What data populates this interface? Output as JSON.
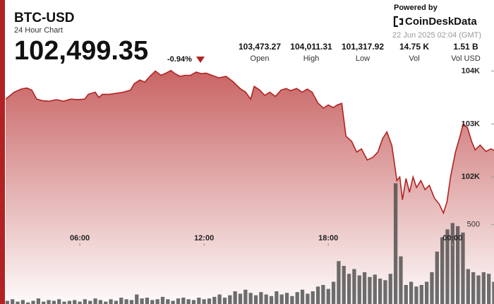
{
  "header": {
    "symbol": "BTC-USD",
    "subtitle": "24 Hour Chart",
    "price": "102,499.35",
    "change": "-0.94%",
    "powered_by": "Powered by",
    "brand": "CoinDeskData",
    "timestamp": "22 Jun 2025 02:04 (GMT)"
  },
  "stats": [
    {
      "value": "103,473.27",
      "label": "Open"
    },
    {
      "value": "104,011.31",
      "label": "High"
    },
    {
      "value": "101,317.92",
      "label": "Low"
    },
    {
      "value": "14.75 K",
      "label": "Vol"
    },
    {
      "value": "1.51 B",
      "label": "Vol USD"
    }
  ],
  "chart_data": {
    "type": "area",
    "xlim": [
      2.42,
      26.0
    ],
    "xticks": [
      {
        "value": 6,
        "label": "06:00"
      },
      {
        "value": 12,
        "label": "12:00"
      },
      {
        "value": 18,
        "label": "18:00"
      },
      {
        "value": 24,
        "label": "00:00"
      }
    ],
    "ylim": [
      99600,
      104100
    ],
    "yticks": [
      {
        "value": 102000,
        "label": "102K"
      },
      {
        "value": 103000,
        "label": "103K"
      },
      {
        "value": 104000,
        "label": "104K"
      }
    ],
    "y2lim": [
      0,
      1500
    ],
    "y2ticks": [
      500
    ],
    "series": [
      {
        "type": "area",
        "color": "#b22222",
        "x": [
          2.42,
          2.83,
          3.17,
          3.44,
          3.68,
          3.92,
          4.19,
          4.53,
          4.87,
          5.22,
          5.56,
          5.9,
          6.24,
          6.41,
          6.75,
          6.92,
          7.09,
          7.43,
          7.77,
          8.11,
          8.45,
          8.63,
          8.9,
          9.14,
          9.38,
          9.65,
          9.92,
          10.16,
          10.4,
          10.6,
          10.84,
          11.08,
          11.35,
          11.62,
          11.86,
          12.1,
          12.38,
          12.72,
          13.06,
          13.4,
          13.74,
          14.01,
          14.25,
          14.42,
          14.69,
          14.93,
          15.17,
          15.44,
          15.72,
          15.96,
          16.19,
          16.47,
          16.74,
          16.98,
          17.22,
          17.49,
          17.76,
          18.0,
          18.24,
          18.44,
          18.65,
          18.85,
          19.13,
          19.37,
          19.6,
          19.88,
          20.15,
          20.39,
          20.63,
          20.83,
          21.07,
          21.31,
          21.45,
          21.58,
          21.75,
          21.92,
          22.09,
          22.26,
          22.47,
          22.67,
          22.88,
          23.12,
          23.35,
          23.56,
          23.73,
          23.9,
          24.14,
          24.38,
          24.51,
          24.72,
          24.92,
          25.09,
          25.33,
          25.61,
          25.85,
          26.0
        ],
        "values": [
          103470,
          103600,
          103660,
          103680,
          103640,
          103470,
          103440,
          103430,
          103460,
          103430,
          103470,
          103460,
          103470,
          103560,
          103600,
          103500,
          103560,
          103560,
          103580,
          103600,
          103640,
          103760,
          103830,
          103790,
          103900,
          104000,
          103920,
          103960,
          104010,
          103950,
          103900,
          103920,
          103920,
          103980,
          103950,
          103960,
          103920,
          103870,
          103900,
          103800,
          103670,
          103600,
          103470,
          103710,
          103640,
          103540,
          103600,
          103520,
          103640,
          103670,
          103630,
          103670,
          103600,
          103660,
          103600,
          103400,
          103300,
          103360,
          103310,
          103360,
          103390,
          102770,
          102670,
          102470,
          102530,
          102320,
          102370,
          102470,
          102730,
          102850,
          102590,
          101930,
          102000,
          101570,
          101970,
          101710,
          102000,
          101800,
          101930,
          101760,
          101840,
          101600,
          101490,
          101320,
          101530,
          102000,
          102470,
          102800,
          103000,
          102930,
          102670,
          102510,
          102600,
          102480,
          102530,
          102500
        ]
      },
      {
        "type": "bar",
        "axis": "y2",
        "color": "#4a4a4a",
        "x": [
          2.5,
          2.75,
          3.0,
          3.25,
          3.5,
          3.75,
          4.0,
          4.25,
          4.5,
          4.75,
          5.0,
          5.25,
          5.5,
          5.75,
          6.0,
          6.25,
          6.5,
          6.75,
          7.0,
          7.25,
          7.5,
          7.75,
          8.0,
          8.25,
          8.5,
          8.75,
          9.0,
          9.25,
          9.5,
          9.75,
          10.0,
          10.25,
          10.5,
          10.75,
          11.0,
          11.25,
          11.5,
          11.75,
          12.0,
          12.25,
          12.5,
          12.75,
          13.0,
          13.25,
          13.5,
          13.75,
          14.0,
          14.25,
          14.5,
          14.75,
          15.0,
          15.25,
          15.5,
          15.75,
          16.0,
          16.25,
          16.5,
          16.75,
          17.0,
          17.25,
          17.5,
          17.75,
          18.0,
          18.25,
          18.5,
          18.75,
          19.0,
          19.25,
          19.5,
          19.75,
          20.0,
          20.25,
          20.5,
          20.75,
          21.0,
          21.25,
          21.5,
          21.75,
          22.0,
          22.25,
          22.5,
          22.75,
          23.0,
          23.25,
          23.5,
          23.75,
          24.0,
          24.25,
          24.5,
          24.75,
          25.0,
          25.25,
          25.5,
          25.75,
          26.0
        ],
        "values": [
          20,
          30,
          15,
          25,
          10,
          20,
          35,
          15,
          25,
          20,
          30,
          15,
          20,
          25,
          15,
          30,
          20,
          35,
          25,
          15,
          30,
          20,
          40,
          30,
          25,
          60,
          35,
          40,
          25,
          30,
          45,
          30,
          20,
          35,
          40,
          30,
          25,
          40,
          30,
          35,
          45,
          60,
          40,
          55,
          80,
          65,
          90,
          70,
          55,
          75,
          60,
          50,
          80,
          60,
          70,
          50,
          75,
          90,
          65,
          80,
          110,
          120,
          95,
          140,
          270,
          240,
          190,
          220,
          180,
          200,
          170,
          185,
          160,
          150,
          190,
          760,
          300,
          120,
          140,
          110,
          120,
          140,
          200,
          330,
          420,
          470,
          510,
          490,
          450,
          220,
          200,
          180,
          200,
          190,
          140
        ]
      }
    ]
  }
}
